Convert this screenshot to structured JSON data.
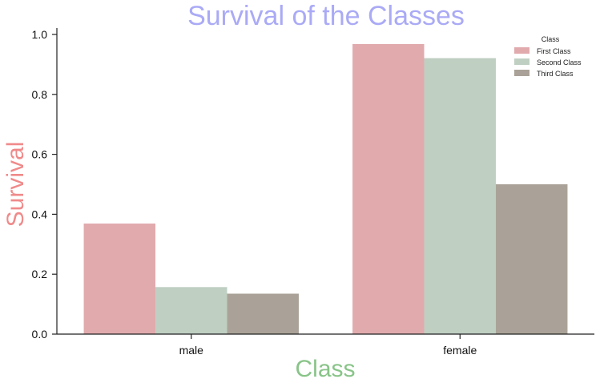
{
  "chart_data": {
    "type": "bar",
    "title": "Survival of the Classes",
    "xlabel": "Class",
    "ylabel": "Survival",
    "categories": [
      "male",
      "female"
    ],
    "series": [
      {
        "name": "First Class",
        "values": [
          0.369,
          0.968
        ],
        "color": "#e1abae"
      },
      {
        "name": "Second Class",
        "values": [
          0.157,
          0.921
        ],
        "color": "#bfcfc2"
      },
      {
        "name": "Third Class",
        "values": [
          0.135,
          0.5
        ],
        "color": "#aaa298"
      }
    ],
    "ylim": [
      0,
      1.0
    ],
    "yticks": [
      "0.0",
      "0.2",
      "0.4",
      "0.6",
      "0.8",
      "1.0"
    ],
    "legend": {
      "title": "Class",
      "position": "top-right"
    },
    "grid": false,
    "colors": {
      "title": "#aaaaf6",
      "xlabel": "#88c488",
      "ylabel": "#f08a8a"
    }
  }
}
